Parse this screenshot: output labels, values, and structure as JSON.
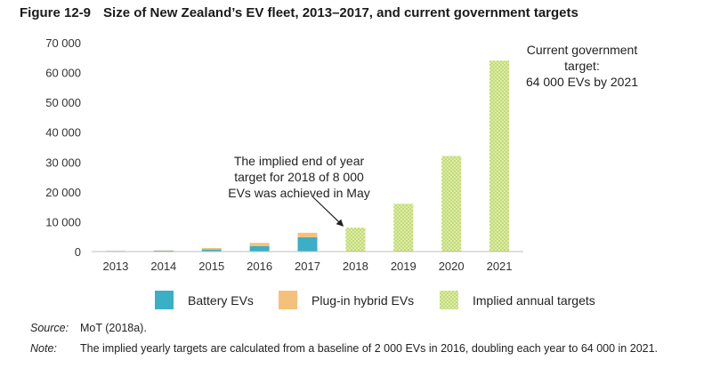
{
  "figure": {
    "number": "Figure 12-9",
    "title": "Size of New Zealand’s EV fleet, 2013–2017, and current government targets"
  },
  "chart_data": {
    "type": "bar",
    "stacked": true,
    "categories": [
      "2013",
      "2014",
      "2015",
      "2016",
      "2017",
      "2018",
      "2019",
      "2020",
      "2021"
    ],
    "series": [
      {
        "name": "Battery EVs",
        "color": "#3aafc6",
        "values": [
          200,
          300,
          700,
          1800,
          4800,
          0,
          0,
          0,
          0
        ]
      },
      {
        "name": "Plug-in hybrid EVs",
        "color": "#f5c17a",
        "values": [
          50,
          80,
          500,
          1100,
          1500,
          0,
          0,
          0,
          0
        ]
      },
      {
        "name": "Implied annual targets",
        "color": "#bfd96a",
        "pattern": "dotted",
        "values": [
          0,
          0,
          0,
          0,
          0,
          8000,
          16000,
          32000,
          64000
        ]
      }
    ],
    "ylim": [
      0,
      70000
    ],
    "yticks": [
      0,
      10000,
      20000,
      30000,
      40000,
      50000,
      60000,
      70000
    ],
    "ytick_labels": [
      "0",
      "10 000",
      "20 000",
      "30 000",
      "40 000",
      "50 000",
      "60 000",
      "70 000"
    ],
    "grid": false,
    "legend_position": "bottom",
    "annotations": [
      {
        "lines": [
          "The implied end of year",
          "target for 2018 of 8 000",
          "EVs was achieved in May"
        ],
        "target_category": "2018"
      },
      {
        "lines": [
          "Current government",
          "target:",
          "64 000 EVs by 2021"
        ],
        "target_category": "2021"
      }
    ]
  },
  "source": {
    "label": "Source:",
    "text": "MoT (2018a)."
  },
  "note": {
    "label": "Note:",
    "text": "The implied yearly targets are calculated from a baseline of 2 000 EVs in 2016, doubling each year to 64 000 in 2021."
  }
}
